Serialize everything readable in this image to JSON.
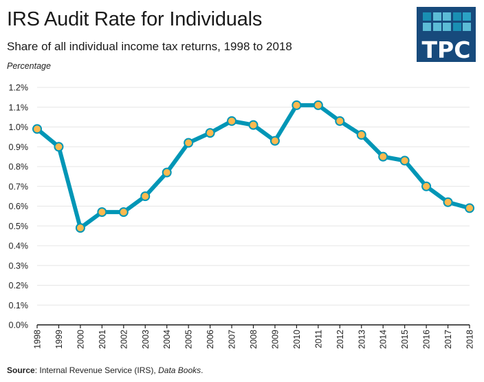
{
  "header": {
    "title": "IRS Audit Rate for Individuals",
    "subtitle": "Share of all individual income tax returns, 1998 to 2018",
    "unit_label": "Percentage"
  },
  "logo": {
    "text": "TPC",
    "background": "#174a7c",
    "squares": [
      "#1a8fb3",
      "#5cbcd6",
      "#5cbcd6",
      "#1a8fb3",
      "#2ba3c4",
      "#5cbcd6",
      "#5cbcd6",
      "#5cbcd6",
      "#1a8fb3",
      "#5cbcd6"
    ]
  },
  "source": {
    "label": "Source",
    "text": ": Internal Revenue Service (IRS), ",
    "italic": "Data Books",
    "end": "."
  },
  "colors": {
    "line": "#0096b6",
    "marker_fill": "#fdb94f",
    "marker_stroke": "#0096b6",
    "grid": "#e6e6e6",
    "axis": "#1a1a1a"
  },
  "chart_data": {
    "type": "line",
    "title": "IRS Audit Rate for Individuals",
    "subtitle": "Share of all individual income tax returns, 1998 to 2018",
    "xlabel": "",
    "ylabel": "Percentage",
    "x": [
      "1998",
      "1999",
      "2000",
      "2001",
      "2002",
      "2003",
      "2004",
      "2005",
      "2006",
      "2007",
      "2008",
      "2009",
      "2010",
      "2011",
      "2012",
      "2013",
      "2014",
      "2015",
      "2016",
      "2017",
      "2018"
    ],
    "series": [
      {
        "name": "Audit rate",
        "values": [
          0.99,
          0.9,
          0.49,
          0.57,
          0.57,
          0.65,
          0.77,
          0.92,
          0.97,
          1.03,
          1.01,
          0.93,
          1.11,
          1.11,
          1.03,
          0.96,
          0.85,
          0.83,
          0.7,
          0.62,
          0.59
        ]
      }
    ],
    "ylim": [
      0,
      1.2
    ],
    "yticks": [
      0.0,
      0.1,
      0.2,
      0.3,
      0.4,
      0.5,
      0.6,
      0.7,
      0.8,
      0.9,
      1.0,
      1.1,
      1.2
    ],
    "ytick_labels": [
      "0.0%",
      "0.1%",
      "0.2%",
      "0.3%",
      "0.4%",
      "0.5%",
      "0.6%",
      "0.7%",
      "0.8%",
      "0.9%",
      "1.0%",
      "1.1%",
      "1.2%"
    ],
    "grid": true,
    "legend": "none"
  }
}
